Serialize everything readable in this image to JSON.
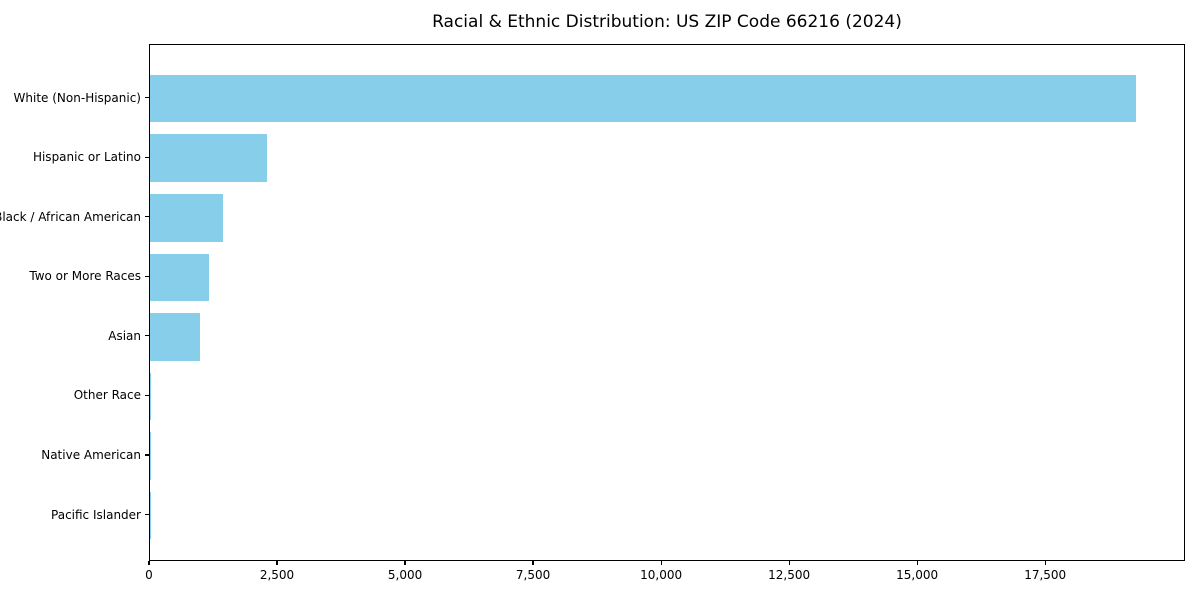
{
  "chart_data": {
    "type": "bar",
    "orientation": "horizontal",
    "title": "Racial & Ethnic Distribution: US ZIP Code 66216 (2024)",
    "categories": [
      "White (Non-Hispanic)",
      "Hispanic or Latino",
      "Black / African American",
      "Two or More Races",
      "Asian",
      "Other Race",
      "Native American",
      "Pacific Islander"
    ],
    "values": [
      19250,
      2280,
      1425,
      1150,
      975,
      25,
      10,
      5
    ],
    "xlabel": "",
    "ylabel": "",
    "xlim": [
      0,
      20230
    ],
    "x_ticks": [
      0,
      2500,
      5000,
      7500,
      10000,
      12500,
      15000,
      17500
    ],
    "x_tick_labels": [
      "0",
      "2,500",
      "5,000",
      "7,500",
      "10,000",
      "12,500",
      "15,000",
      "17,500"
    ],
    "grid": false,
    "legend": null,
    "bar_color": "#87CEEB"
  },
  "colors": {
    "bar": "#87CEEB",
    "text": "#000000",
    "spine": "#000000",
    "background": "#ffffff"
  }
}
